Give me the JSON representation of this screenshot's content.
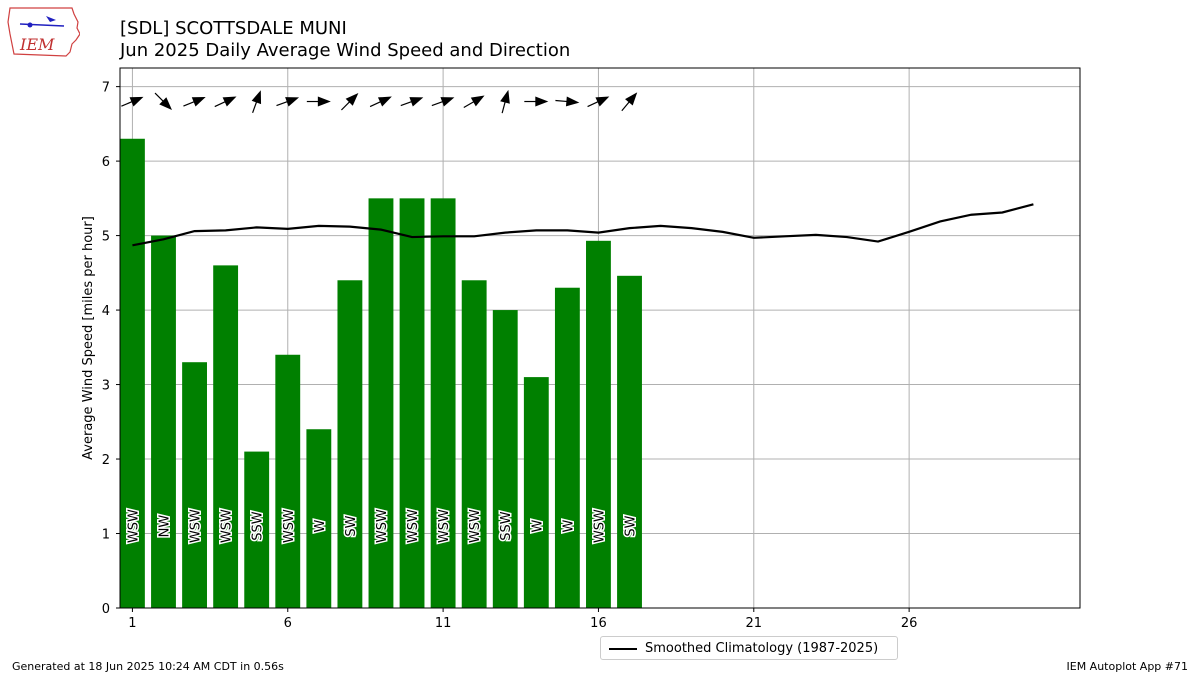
{
  "header": {
    "title_line1": "[SDL] SCOTTSDALE MUNI",
    "title_line2": "Jun 2025 Daily Average Wind Speed and Direction"
  },
  "logo": {
    "text": "IEM",
    "icon": "iem-iowa-logo"
  },
  "footer": {
    "left": "Generated at 18 Jun 2025 10:24 AM CDT in 0.56s",
    "right": "IEM Autoplot App #71"
  },
  "legend": {
    "label": "Smoothed Climatology (1987-2025)"
  },
  "colors": {
    "bar": "#008000",
    "climo": "#000000",
    "grid": "#b0b0b0"
  },
  "chart_data": {
    "type": "bar",
    "ylabel": "Average Wind Speed [miles per hour]",
    "xlabel": "",
    "ylim": [
      0,
      7.25
    ],
    "xlim": [
      0.6,
      31.5
    ],
    "grid": true,
    "legend_position": "bottom-center",
    "x_ticks": [
      1,
      6,
      11,
      16,
      21,
      26
    ],
    "y_ticks": [
      0,
      1,
      2,
      3,
      4,
      5,
      6,
      7
    ],
    "bars": {
      "days": [
        1,
        2,
        3,
        4,
        5,
        6,
        7,
        8,
        9,
        10,
        11,
        12,
        13,
        14,
        15,
        16,
        17
      ],
      "values": [
        6.3,
        5.0,
        3.3,
        4.6,
        2.1,
        3.4,
        2.4,
        4.4,
        5.5,
        5.5,
        5.5,
        4.4,
        4.0,
        3.1,
        4.3,
        4.93,
        4.46
      ],
      "direction_labels": [
        "WSW",
        "NW",
        "WSW",
        "WSW",
        "SSW",
        "WSW",
        "W",
        "SW",
        "WSW",
        "WSW",
        "WSW",
        "WSW",
        "SSW",
        "W",
        "W",
        "WSW",
        "SW"
      ],
      "direction_degrees": [
        247,
        315,
        248,
        245,
        200,
        250,
        270,
        225,
        245,
        250,
        250,
        240,
        195,
        270,
        275,
        245,
        220
      ]
    },
    "arrows": {
      "days": [
        1,
        2,
        3,
        4,
        5,
        6,
        7,
        8,
        9,
        10,
        11,
        12,
        13,
        14,
        15,
        16,
        17
      ],
      "y": [
        6.8,
        6.8,
        6.8,
        6.8,
        6.8,
        6.8,
        6.8,
        6.8,
        6.8,
        6.8,
        6.8,
        6.8,
        6.8,
        6.8,
        6.8,
        6.8,
        6.8
      ]
    },
    "series": [
      {
        "name": "Smoothed Climatology (1987-2025)",
        "type": "line",
        "x": [
          1,
          2,
          3,
          4,
          5,
          6,
          7,
          8,
          9,
          10,
          11,
          12,
          13,
          14,
          15,
          16,
          17,
          18,
          19,
          20,
          21,
          22,
          23,
          24,
          25,
          26,
          27,
          28,
          29,
          30
        ],
        "values": [
          4.87,
          4.95,
          5.06,
          5.07,
          5.11,
          5.09,
          5.13,
          5.12,
          5.08,
          4.98,
          4.99,
          4.99,
          5.04,
          5.07,
          5.07,
          5.04,
          5.1,
          5.13,
          5.1,
          5.05,
          4.97,
          4.99,
          5.01,
          4.98,
          4.92,
          5.05,
          5.19,
          5.28,
          5.31,
          5.42
        ]
      }
    ]
  }
}
